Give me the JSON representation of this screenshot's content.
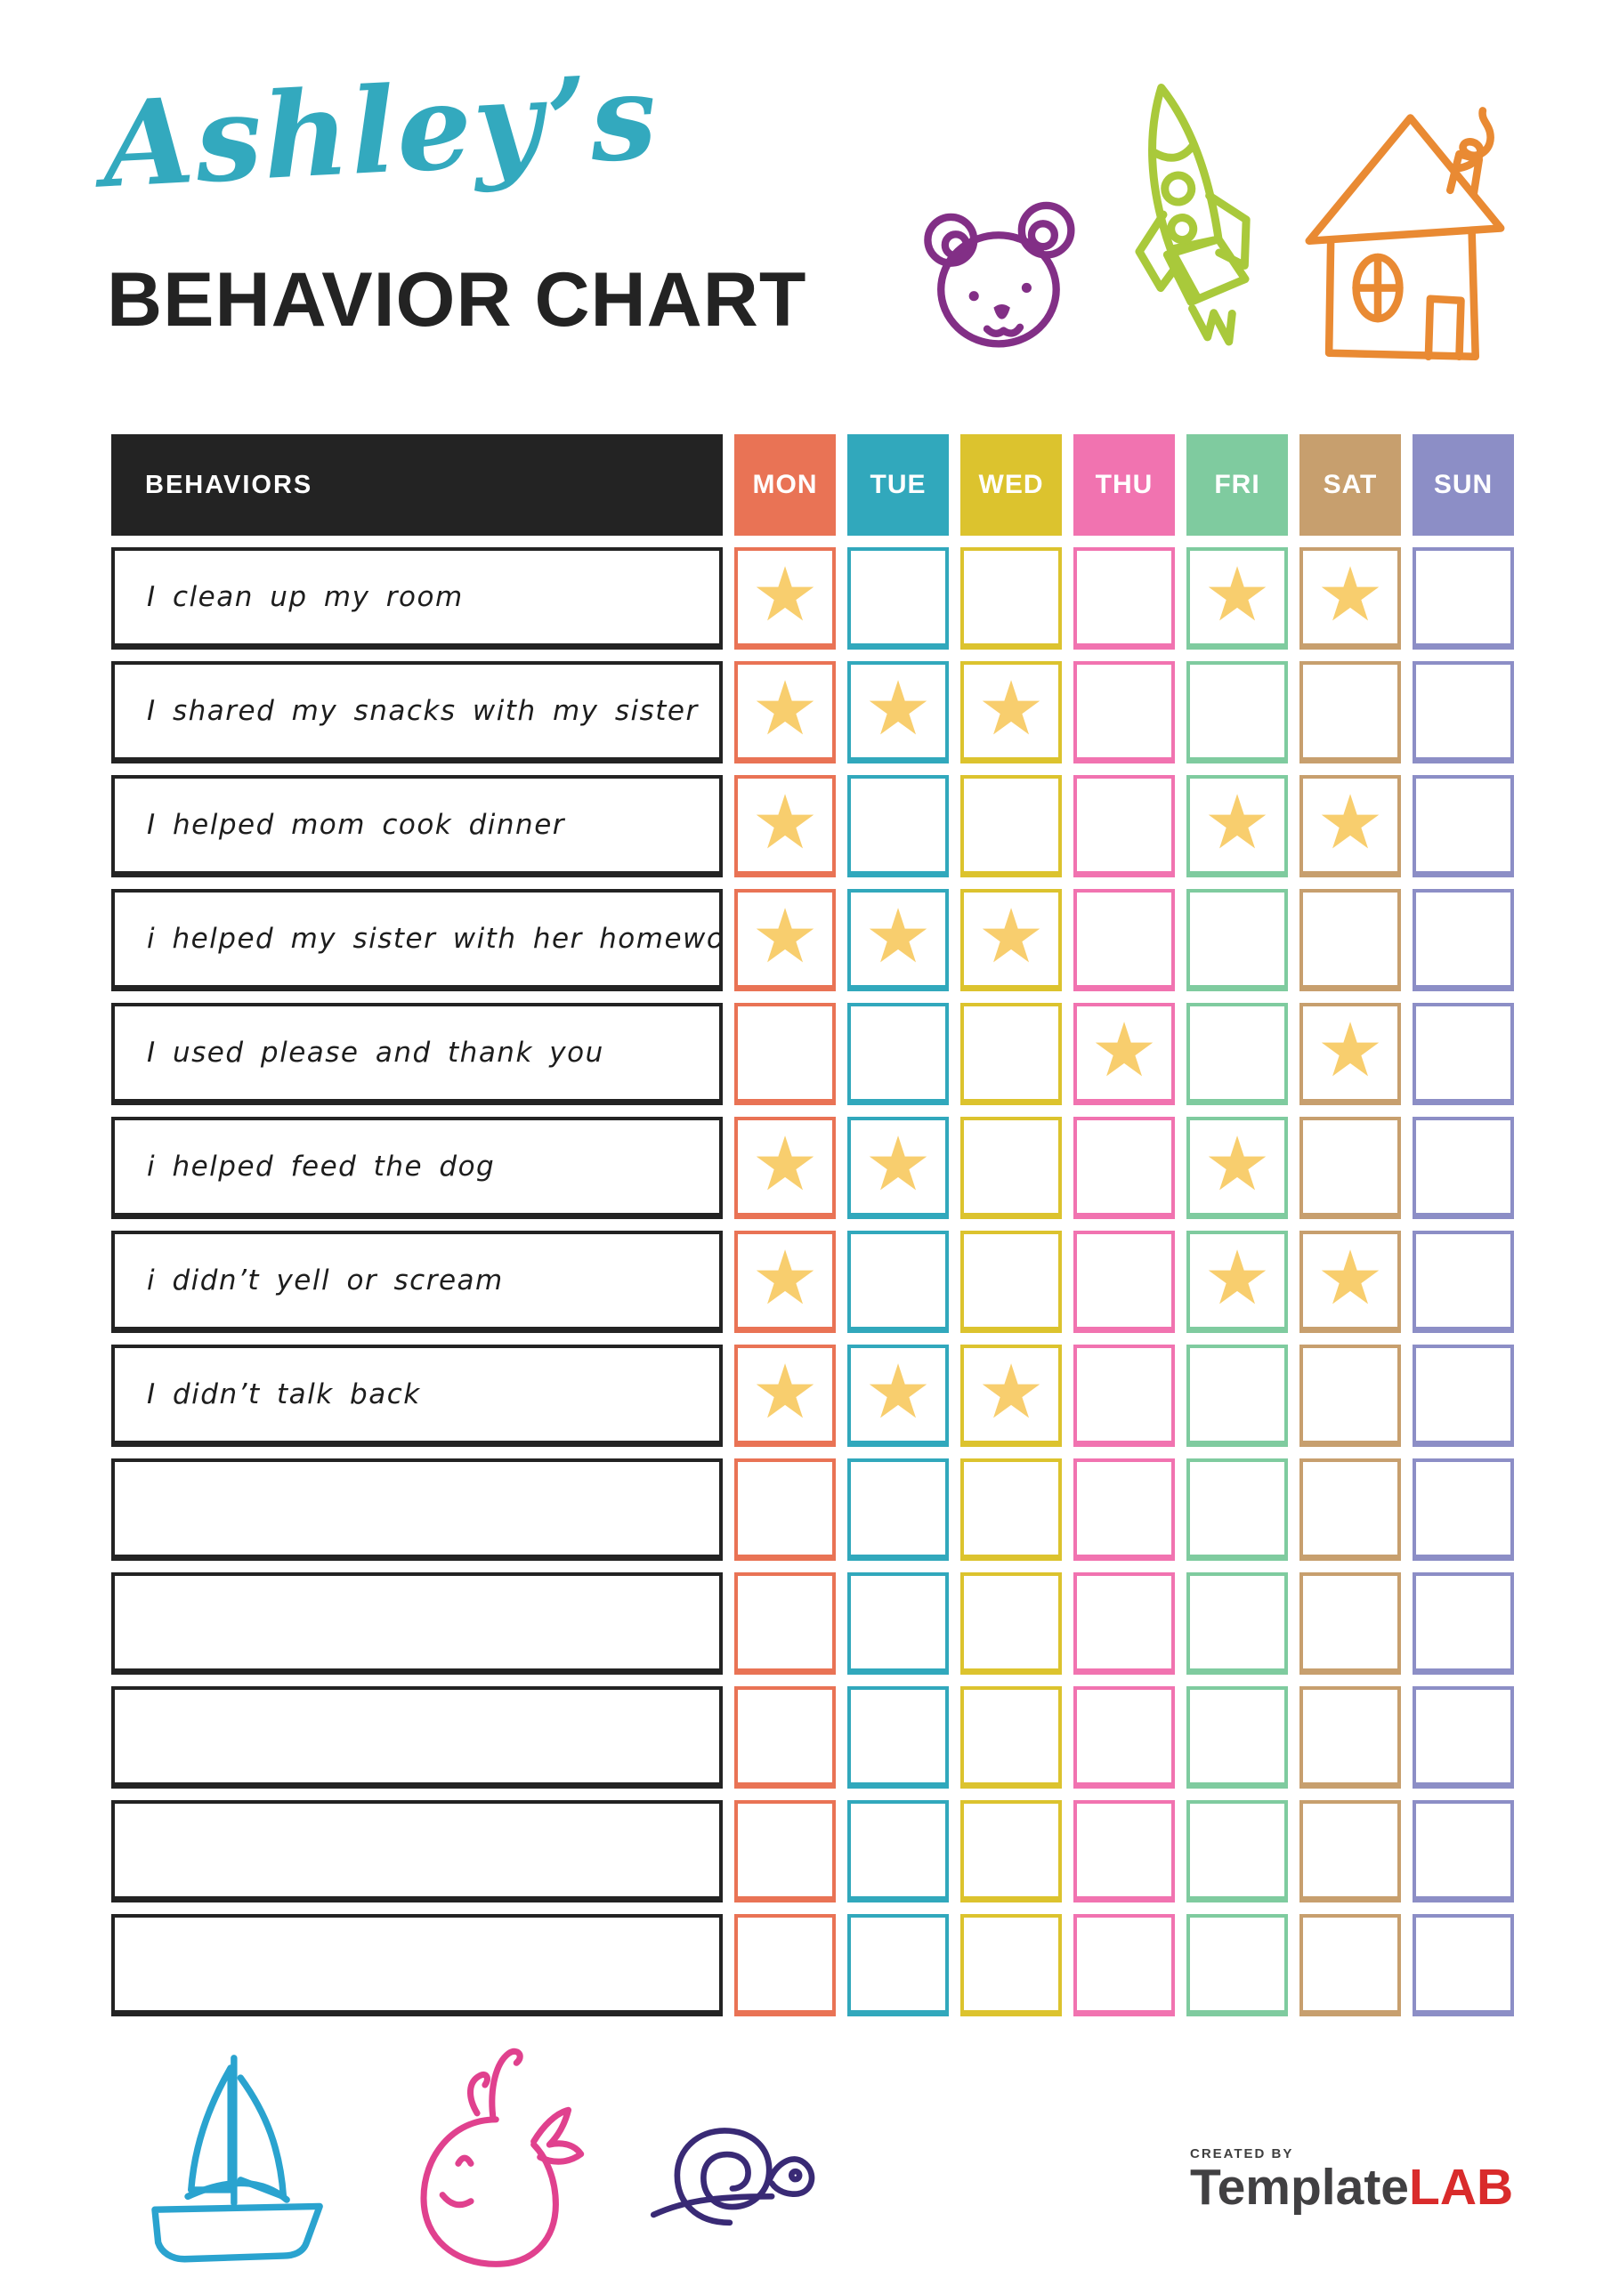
{
  "header": {
    "script_title": "Ashley’s",
    "main_title": "BEHAVIOR CHART"
  },
  "table": {
    "behaviors_label": "BEHAVIORS",
    "day_labels": [
      "MON",
      "TUE",
      "WED",
      "THU",
      "FRI",
      "SAT",
      "SUN"
    ],
    "day_colors": [
      "#E97355",
      "#31A8BC",
      "#DCC32E",
      "#F173B0",
      "#7FCB9F",
      "#C79F6E",
      "#8C8EC6"
    ],
    "star_color": "#F8CE6E",
    "rows": [
      {
        "behavior": "I clean up my room",
        "stars": [
          "MON",
          "FRI",
          "SAT"
        ]
      },
      {
        "behavior": "I shared my snacks with my sister",
        "stars": [
          "MON",
          "TUE",
          "WED"
        ]
      },
      {
        "behavior": "I helped mom cook dinner",
        "stars": [
          "MON",
          "FRI",
          "SAT"
        ]
      },
      {
        "behavior": "i helped my sister with her homework",
        "stars": [
          "MON",
          "TUE",
          "WED"
        ]
      },
      {
        "behavior": "I used please and thank you",
        "stars": [
          "THU",
          "SAT"
        ]
      },
      {
        "behavior": "i helped feed the dog",
        "stars": [
          "MON",
          "TUE",
          "FRI"
        ]
      },
      {
        "behavior": "i didn’t yell or scream",
        "stars": [
          "MON",
          "FRI",
          "SAT"
        ]
      },
      {
        "behavior": "I didn’t talk back",
        "stars": [
          "MON",
          "TUE",
          "WED"
        ]
      },
      {
        "behavior": "",
        "stars": []
      },
      {
        "behavior": "",
        "stars": []
      },
      {
        "behavior": "",
        "stars": []
      },
      {
        "behavior": "",
        "stars": []
      },
      {
        "behavior": "",
        "stars": []
      }
    ]
  },
  "decorations": {
    "top_icons": [
      "bear",
      "rocket",
      "house"
    ],
    "bottom_icons": [
      "sailboat",
      "whale",
      "snail"
    ],
    "colors": {
      "title_script": "#33A9BE",
      "bear": "#822F86",
      "rocket": "#A9C93B",
      "house": "#E98A33",
      "sailboat": "#2AA3CF",
      "whale": "#E0418E",
      "snail": "#392A75"
    }
  },
  "footer": {
    "created_by": "CREATED BY",
    "brand_name": "Template",
    "brand_suffix": "LAB"
  }
}
